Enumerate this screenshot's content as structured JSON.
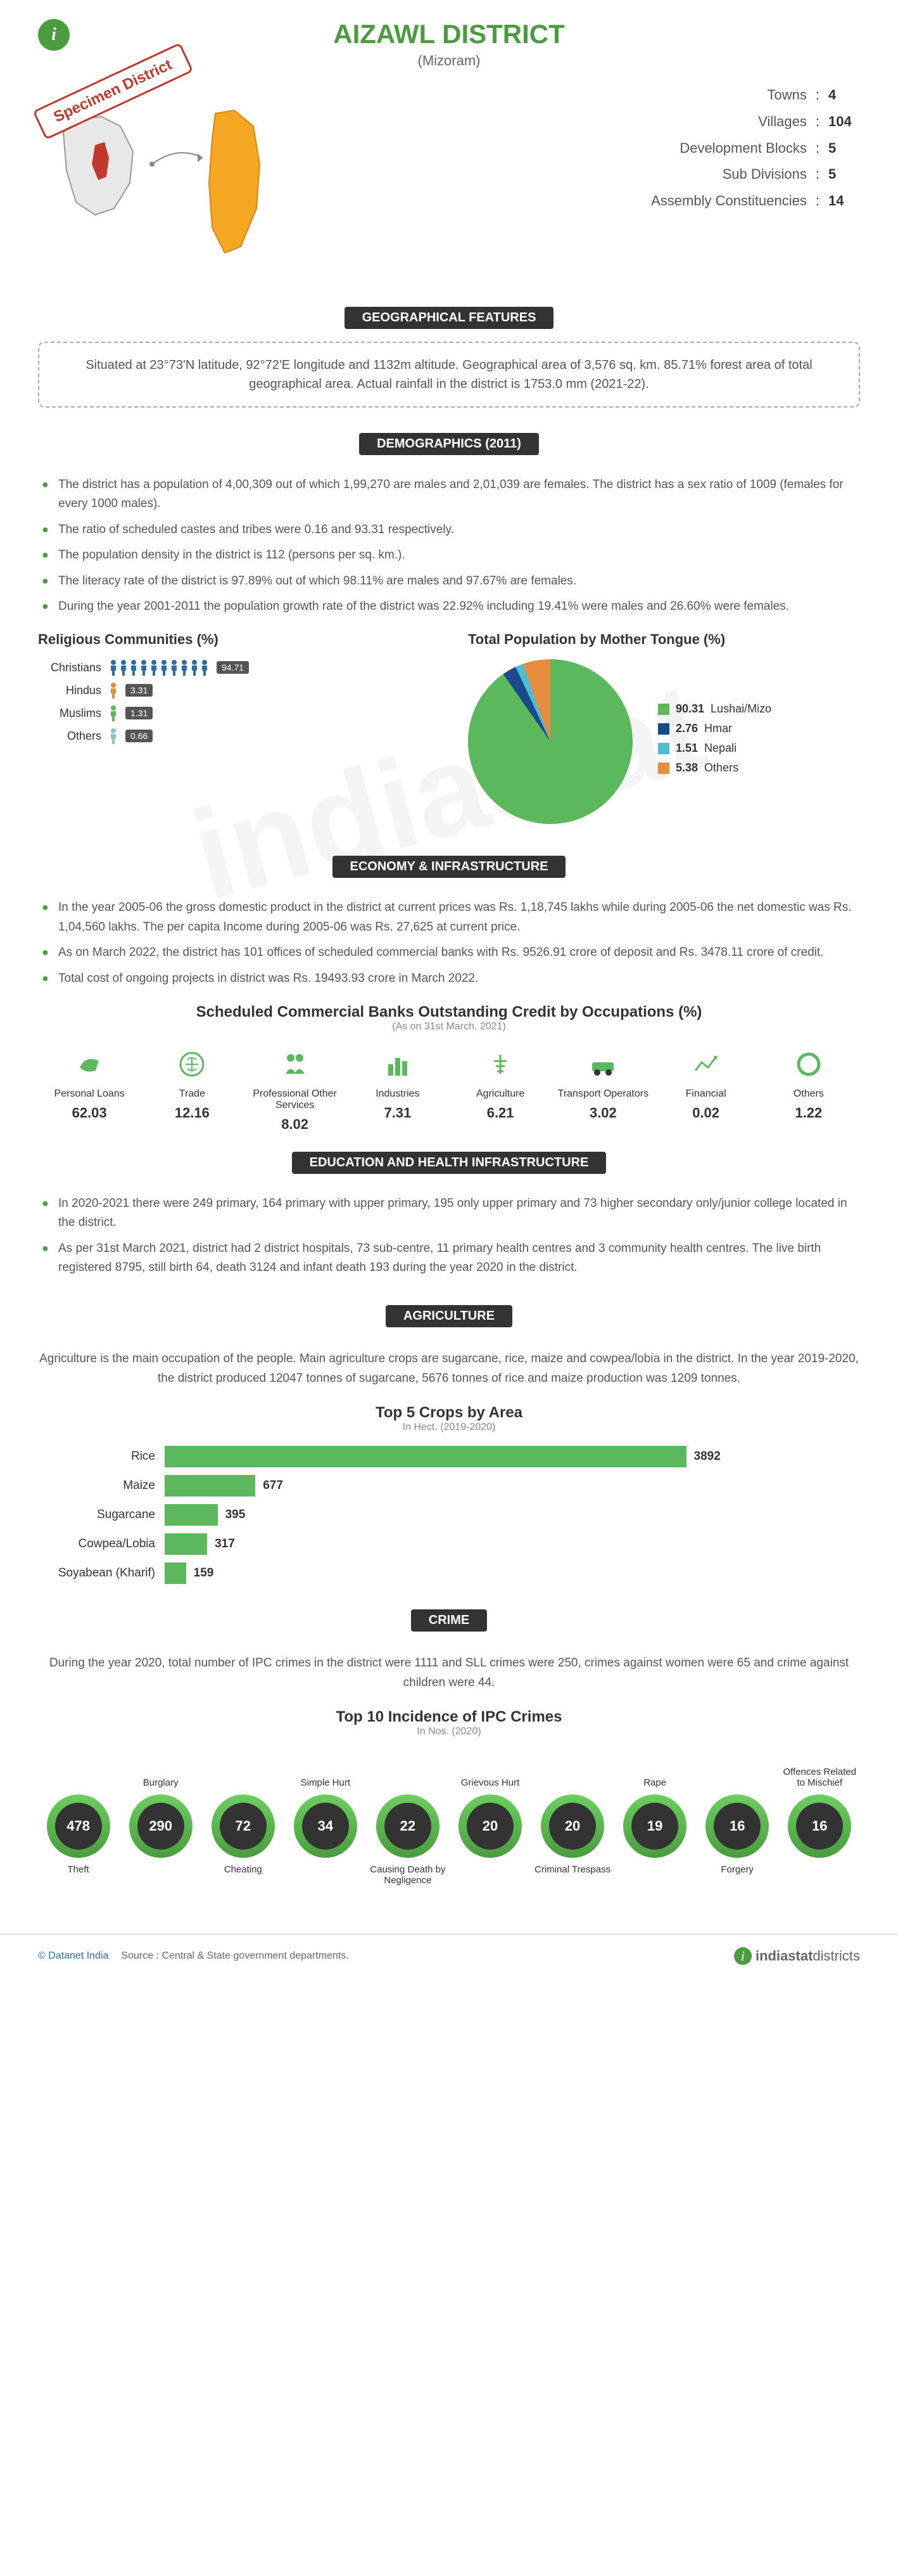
{
  "header": {
    "title": "AIZAWL DISTRICT",
    "subtitle": "(Mizoram)",
    "specimen": "Specimen District"
  },
  "stats": {
    "towns": {
      "label": "Towns",
      "value": "4"
    },
    "villages": {
      "label": "Villages",
      "value": "104"
    },
    "blocks": {
      "label": "Development Blocks",
      "value": "5"
    },
    "subdiv": {
      "label": "Sub Divisions",
      "value": "5"
    },
    "assembly": {
      "label": "Assembly Constituencies",
      "value": "14"
    }
  },
  "sections": {
    "geo": "GEOGRAPHICAL FEATURES",
    "demo": "DEMOGRAPHICS (2011)",
    "econ": "ECONOMY & INFRASTRUCTURE",
    "edu": "EDUCATION AND HEALTH INFRASTRUCTURE",
    "agri": "AGRICULTURE",
    "crime": "CRIME"
  },
  "geo_text": "Situated at 23°73'N latitude, 92°72'E longitude and 1132m altitude. Geographical area of 3,576 sq. km. 85.71% forest area of total geographical area. Actual rainfall in the district is 1753.0 mm (2021-22).",
  "demo_bullets": [
    "The district has a population of 4,00,309 out of which 1,99,270 are males and 2,01,039 are females. The district has a sex ratio of 1009 (females for every 1000 males).",
    "The ratio of scheduled castes and tribes were 0.16 and 93.31 respectively.",
    "The population density in the district is 112 (persons per sq. km.).",
    "The literacy rate of the district is 97.89% out of which 98.11% are males and 97.67% are females.",
    "During the year 2001-2011 the population growth rate of the district was 22.92% including 19.41% were males and 26.60% were females."
  ],
  "religion": {
    "title": "Religious Communities (%)",
    "items": [
      {
        "label": "Christians",
        "value": "94.71",
        "count": 10,
        "color": "#2a6ea8"
      },
      {
        "label": "Hindus",
        "value": "3.31",
        "count": 1,
        "color": "#e78b3f"
      },
      {
        "label": "Muslims",
        "value": "1.31",
        "count": 1,
        "color": "#5cb85c"
      },
      {
        "label": "Others",
        "value": "0.66",
        "count": 1,
        "color": "#7ec8c8"
      }
    ]
  },
  "mother_tongue": {
    "title": "Total Population by Mother Tongue (%)",
    "slices": [
      {
        "label": "Lushai/Mizo",
        "value": "90.31",
        "color": "#5cb85c"
      },
      {
        "label": "Hmar",
        "value": "2.76",
        "color": "#1a4a8c"
      },
      {
        "label": "Nepali",
        "value": "1.51",
        "color": "#4abfd4"
      },
      {
        "label": "Others",
        "value": "5.38",
        "color": "#e78b3f"
      }
    ]
  },
  "econ_bullets": [
    "In the year 2005-06 the gross domestic product in the district at current prices was Rs. 1,18,745 lakhs while during 2005-06 the net domestic was Rs. 1,04,560 lakhs. The per capita Income during 2005-06 was Rs. 27,625 at current price.",
    "As on March 2022, the district has 101 offices of scheduled commercial banks with Rs. 9526.91 crore of deposit and Rs. 3478.11 crore of credit.",
    "Total cost of ongoing projects in district was Rs. 19493.93 crore in March 2022."
  ],
  "credit": {
    "title": "Scheduled Commercial Banks Outstanding Credit by Occupations (%)",
    "sub": "(As on 31st March, 2021)",
    "items": [
      {
        "label": "Personal Loans",
        "value": "62.03"
      },
      {
        "label": "Trade",
        "value": "12.16"
      },
      {
        "label": "Professional Other Services",
        "value": "8.02"
      },
      {
        "label": "Industries",
        "value": "7.31"
      },
      {
        "label": "Agriculture",
        "value": "6.21"
      },
      {
        "label": "Transport Operators",
        "value": "3.02"
      },
      {
        "label": "Financial",
        "value": "0.02"
      },
      {
        "label": "Others",
        "value": "1.22"
      }
    ]
  },
  "edu_bullets": [
    "In 2020-2021 there were 249 primary, 164 primary with upper primary, 195 only upper primary and 73 higher secondary only/junior college located in the district.",
    "As per 31st March 2021, district had 2 district hospitals, 73 sub-centre, 11 primary health centres and 3 community health centres. The live birth registered 8795, still birth 64, death 3124 and infant death 193 during the year 2020 in the district."
  ],
  "agri_para": "Agriculture is the main occupation of the people. Main agriculture crops are sugarcane, rice, maize and cowpea/lobia in the district. In the year 2019-2020, the district produced 12047 tonnes of sugarcane, 5676 tonnes of rice and maize production was 1209 tonnes.",
  "crops": {
    "title": "Top 5 Crops by Area",
    "sub": "In Hect. (2019-2020)",
    "max": 3892,
    "bar_color": "#5cb85c",
    "items": [
      {
        "label": "Rice",
        "value": 3892
      },
      {
        "label": "Maize",
        "value": 677
      },
      {
        "label": "Sugarcane",
        "value": 395
      },
      {
        "label": "Cowpea/Lobia",
        "value": 317
      },
      {
        "label": "Soyabean (Kharif)",
        "value": 159
      }
    ]
  },
  "crime_para": "During the year 2020, total number of IPC crimes in the district were 1111 and SLL crimes were 250, crimes against women were 65 and crime against children were 44.",
  "crimes": {
    "title": "Top 10 Incidence of IPC Crimes",
    "sub": "In Nos. (2020)",
    "items": [
      {
        "top": "",
        "value": "478",
        "bot": "Theft"
      },
      {
        "top": "Burglary",
        "value": "290",
        "bot": ""
      },
      {
        "top": "",
        "value": "72",
        "bot": "Cheating"
      },
      {
        "top": "Simple Hurt",
        "value": "34",
        "bot": ""
      },
      {
        "top": "",
        "value": "22",
        "bot": "Causing Death by Negligence"
      },
      {
        "top": "Grievous Hurt",
        "value": "20",
        "bot": ""
      },
      {
        "top": "",
        "value": "20",
        "bot": "Criminal Trespass"
      },
      {
        "top": "Rape",
        "value": "19",
        "bot": ""
      },
      {
        "top": "",
        "value": "16",
        "bot": "Forgery"
      },
      {
        "top": "Offences Related to Mischief",
        "value": "16",
        "bot": ""
      }
    ]
  },
  "footer": {
    "copyright": "© Datanet India",
    "source": "Source : Central & State government departments.",
    "brand_a": "indiastat",
    "brand_b": "districts"
  },
  "colors": {
    "primary": "#4a9c3e",
    "dark": "#333333"
  }
}
